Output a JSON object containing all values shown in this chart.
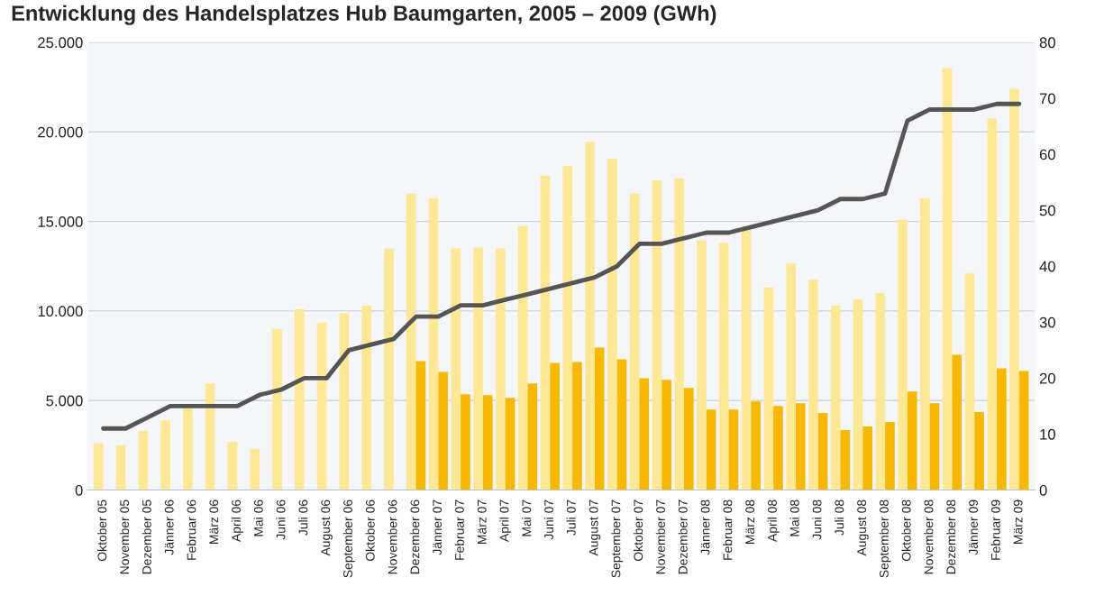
{
  "chart_data": {
    "type": "bar",
    "title": "Entwicklung des Handelsplatzes Hub Baumgarten, 2005 – 2009 (GWh)",
    "categories": [
      "Oktober 05",
      "November 05",
      "Dezember 05",
      "Jänner 06",
      "Februar 06",
      "März 06",
      "April 06",
      "Mai 06",
      "Juni 06",
      "Juli 06",
      "August 06",
      "September 06",
      "Oktober 06",
      "November 06",
      "Dezember 06",
      "Jänner 07",
      "Februar 07",
      "März 07",
      "April 07",
      "Mai 07",
      "Juni 07",
      "Juli 07",
      "August 07",
      "September 07",
      "Oktober 07",
      "November 07",
      "Dezember 07",
      "Jänner 08",
      "Februar 08",
      "März 08",
      "April 08",
      "Mai 08",
      "Juni 08",
      "Juli 08",
      "August 08",
      "September 08",
      "Oktober 08",
      "November 08",
      "Dezember 08",
      "Jänner 09",
      "Februar 09",
      "März 09"
    ],
    "series": [
      {
        "color": "#fee896",
        "values": [
          2600,
          2500,
          3300,
          3900,
          4600,
          5950,
          2700,
          2300,
          9000,
          10100,
          9350,
          9900,
          10300,
          13500,
          16550,
          16300,
          13500,
          13550,
          13500,
          14750,
          17550,
          18100,
          19450,
          18500,
          16550,
          17300,
          17400,
          13950,
          13800,
          14650,
          11300,
          12650,
          11750,
          10300,
          10650,
          11000,
          15100,
          16300,
          23550,
          12100,
          20750,
          22400
        ]
      },
      {
        "color": "#f9b800",
        "values": [
          null,
          null,
          null,
          null,
          null,
          null,
          null,
          null,
          null,
          null,
          null,
          null,
          null,
          null,
          7200,
          6600,
          5350,
          5300,
          5150,
          5950,
          7100,
          7150,
          7950,
          7300,
          6250,
          6150,
          5700,
          4500,
          4500,
          4950,
          4700,
          4850,
          4300,
          3350,
          3550,
          3800,
          5500,
          4850,
          7550,
          4350,
          6800,
          6650
        ]
      },
      {
        "type": "line",
        "axis": "y2",
        "color": "#555555",
        "values": [
          11,
          11,
          13,
          15,
          15,
          15,
          15,
          17,
          18,
          20,
          20,
          25,
          26,
          27,
          31,
          31,
          33,
          33,
          34,
          35,
          36,
          37,
          38,
          40,
          44,
          44,
          45,
          46,
          46,
          47,
          48,
          49,
          50,
          52,
          52,
          53,
          66,
          68,
          68,
          68,
          69,
          69
        ]
      }
    ],
    "ylim": [
      0,
      25000
    ],
    "yticks": [
      {
        "value": 0,
        "label": "0"
      },
      {
        "value": 5000,
        "label": "5.000"
      },
      {
        "value": 10000,
        "label": "10.000"
      },
      {
        "value": 15000,
        "label": "15.000"
      },
      {
        "value": 20000,
        "label": "20.000"
      },
      {
        "value": 25000,
        "label": "25.000"
      }
    ],
    "y2lim": [
      0,
      80
    ],
    "y2ticks": [
      0,
      10,
      20,
      30,
      40,
      50,
      60,
      70,
      80
    ],
    "grid": "y",
    "legend": false,
    "marker": "none",
    "line_style": "solid"
  }
}
